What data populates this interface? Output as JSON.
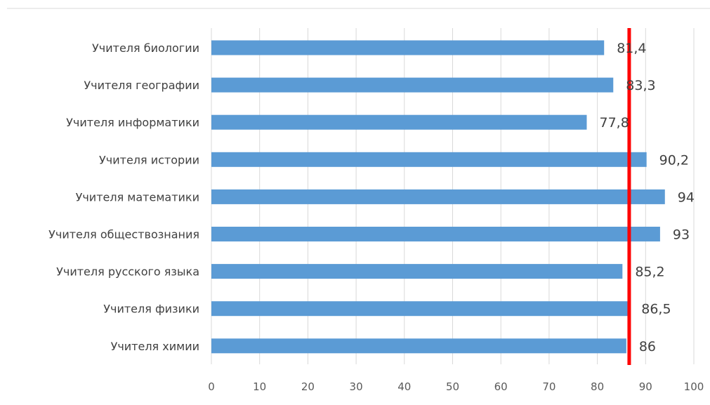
{
  "chart_data": {
    "type": "bar",
    "orientation": "horizontal",
    "categories": [
      "Учителя биологии",
      "Учителя географии",
      "Учителя информатики",
      "Учителя истории",
      "Учителя математики",
      "Учителя обществознания",
      "Учителя русского языка",
      "Учителя физики",
      "Учителя химии"
    ],
    "values": [
      81.4,
      83.3,
      77.8,
      90.2,
      94,
      93,
      85.2,
      86.5,
      86
    ],
    "value_labels": [
      "81,4",
      "83,3",
      "77,8",
      "90,2",
      "94",
      "93",
      "85,2",
      "86,5",
      "86"
    ],
    "x_ticks": [
      "0",
      "10",
      "20",
      "30",
      "40",
      "50",
      "60",
      "70",
      "80",
      "90",
      "100"
    ],
    "xlim": [
      0,
      100
    ],
    "reference_line": {
      "value": 86.6,
      "color": "#ff0000"
    },
    "bar_color": "#5b9bd5",
    "grid": "vertical",
    "legend": "none",
    "title": "",
    "xlabel": "",
    "ylabel": ""
  }
}
